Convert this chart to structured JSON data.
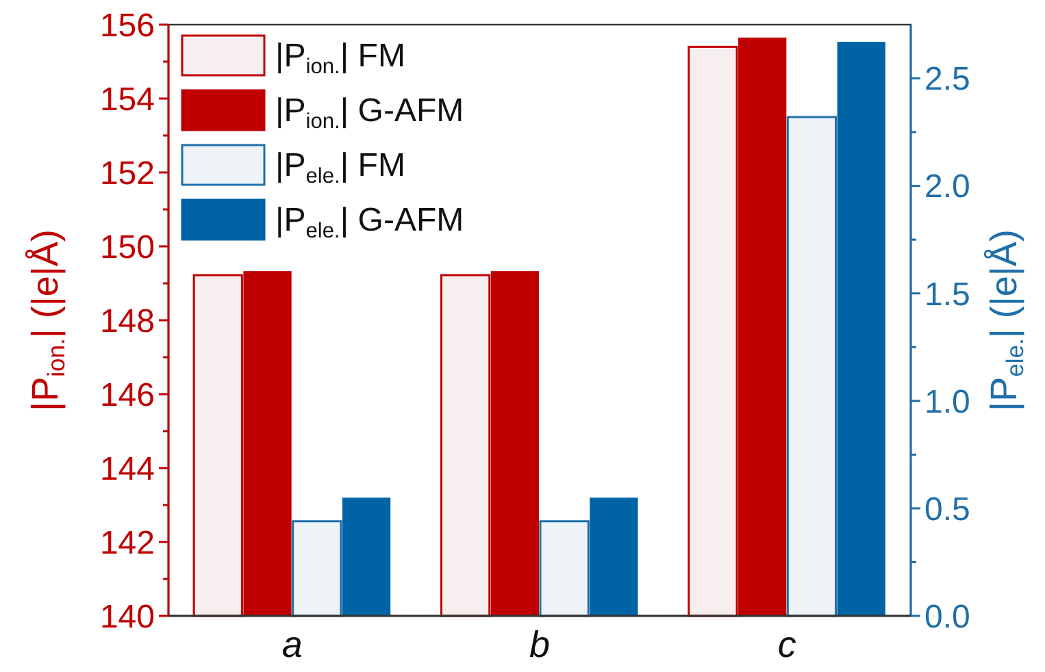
{
  "chart_data": {
    "type": "bar",
    "categories": [
      "a",
      "b",
      "c"
    ],
    "ylabel": "|P$_{ion.}$| (|e|Å)",
    "y2label": "|P$_{ele.}$| (|e|Å)",
    "ylim": [
      140,
      156
    ],
    "yticks": [
      140,
      {
        "value": 141,
        "label": null
      },
      142,
      {
        "value": 143,
        "label": null
      },
      144,
      {
        "value": 145,
        "label": null
      },
      146,
      {
        "value": 147,
        "label": null
      },
      148,
      {
        "value": 149,
        "label": null
      },
      150,
      {
        "value": 151,
        "label": null
      },
      152,
      {
        "value": 153,
        "label": null
      },
      154,
      {
        "value": 155,
        "label": null
      },
      156
    ],
    "y2lim": [
      0,
      2.75
    ],
    "y2ticks": [
      {
        "value": 0,
        "label": "0.0"
      },
      {
        "value": 0.25,
        "label": null
      },
      {
        "value": 0.5,
        "label": "0.5"
      },
      {
        "value": 0.75,
        "label": null
      },
      {
        "value": 1,
        "label": "1.0"
      },
      {
        "value": 1.25,
        "label": null
      },
      {
        "value": 1.5,
        "label": "1.5"
      },
      {
        "value": 1.75,
        "label": null
      },
      {
        "value": 2,
        "label": "2.0"
      },
      {
        "value": 2.25,
        "label": null
      },
      {
        "value": 2.5,
        "label": "2.5"
      }
    ],
    "legend": "top left",
    "grid": false,
    "series": [
      {
        "name": "|P$_{ion.}$| FM",
        "color": "#c00000",
        "colors": [
          "#f7efef",
          "#f7efef",
          "#f7efef"
        ],
        "values": [
          149.22,
          149.22,
          155.4
        ]
      },
      {
        "name": "|P$_{ion.}$| G-AFM",
        "color": "#c00000",
        "values": [
          149.33,
          149.33,
          155.65
        ]
      },
      {
        "name": "|P$_{ele.}$| FM",
        "color": "#1f6fa8",
        "colors": [
          "#eef3f7",
          "#eef3f7",
          "#eef3f7"
        ],
        "axis": "y2",
        "values": [
          0.44,
          0.44,
          2.32
        ]
      },
      {
        "name": "|P$_{ele.}$| G-AFM",
        "color": "#0063a6",
        "axis": "y2",
        "values": [
          0.55,
          0.55,
          2.67
        ]
      }
    ]
  }
}
